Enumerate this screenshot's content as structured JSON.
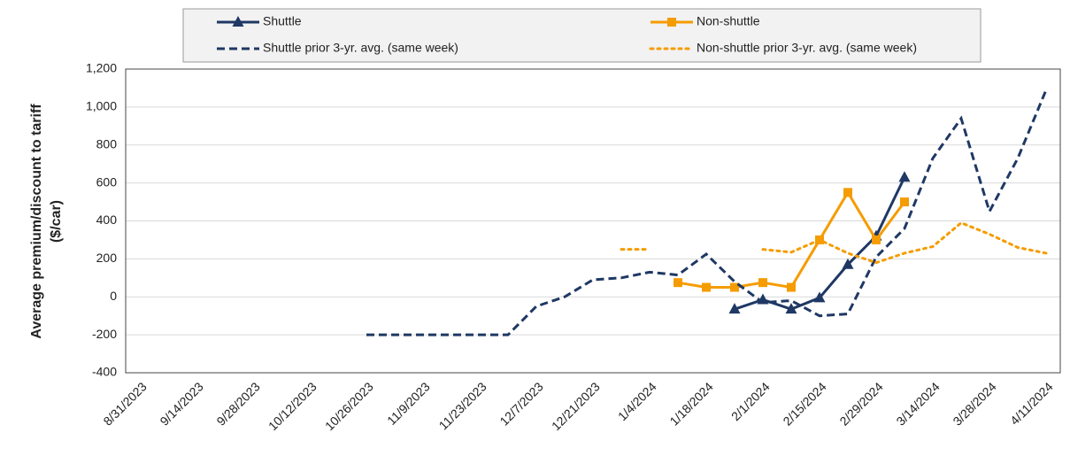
{
  "chart_data": {
    "type": "line",
    "ylabel": [
      "Average premium/discount to tariff",
      "($/car)"
    ],
    "categories": [
      "8/31/2023",
      null,
      "9/14/2023",
      null,
      "9/28/2023",
      null,
      "10/12/2023",
      null,
      "10/26/2023",
      null,
      "11/9/2023",
      null,
      "11/23/2023",
      null,
      "12/7/2023",
      null,
      "12/21/2023",
      null,
      "1/4/2024",
      null,
      "1/18/2024",
      null,
      "2/1/2024",
      null,
      "2/15/2024",
      null,
      "2/29/2024",
      null,
      "3/14/2024",
      null,
      "3/28/2024",
      null,
      "4/11/2024"
    ],
    "series": [
      {
        "name": "Shuttle",
        "color": "#1f3864",
        "style": "solid",
        "marker": "triangle",
        "values": [
          null,
          null,
          null,
          null,
          null,
          null,
          null,
          null,
          null,
          null,
          null,
          null,
          null,
          null,
          null,
          null,
          null,
          null,
          null,
          null,
          null,
          -65,
          -15,
          -65,
          -5,
          170,
          320,
          630,
          null,
          null,
          null,
          null,
          null
        ]
      },
      {
        "name": "Non-shuttle",
        "color": "#f59c00",
        "style": "solid",
        "marker": "square",
        "values": [
          null,
          null,
          null,
          null,
          null,
          null,
          null,
          null,
          null,
          null,
          null,
          null,
          null,
          null,
          null,
          null,
          null,
          null,
          null,
          75,
          50,
          50,
          75,
          50,
          300,
          550,
          300,
          500,
          null,
          null,
          null,
          null,
          null
        ]
      },
      {
        "name": "Shuttle prior 3-yr. avg. (same week)",
        "color": "#1f3864",
        "style": "dashed",
        "marker": "none",
        "values": [
          null,
          null,
          null,
          null,
          null,
          null,
          null,
          null,
          -200,
          -200,
          -200,
          -200,
          -200,
          -200,
          -50,
          0,
          90,
          100,
          130,
          115,
          225,
          80,
          -30,
          -20,
          -100,
          -90,
          210,
          360,
          730,
          940,
          450,
          730,
          1090
        ]
      },
      {
        "name": "Non-shuttle prior 3-yr. avg. (same week)",
        "color": "#f59c00",
        "style": "dotted",
        "marker": "none",
        "values": [
          null,
          null,
          null,
          null,
          null,
          null,
          null,
          null,
          null,
          null,
          null,
          null,
          null,
          null,
          null,
          null,
          null,
          250,
          250,
          null,
          null,
          null,
          250,
          235,
          300,
          230,
          180,
          230,
          265,
          390,
          330,
          260,
          230
        ]
      }
    ],
    "ylim": [
      -400,
      1200
    ],
    "yticks": [
      -400,
      -200,
      0,
      200,
      400,
      600,
      800,
      {
        "value": 1000,
        "label": "1,000"
      },
      {
        "value": 1200,
        "label": "1,200"
      }
    ],
    "grid": true
  }
}
